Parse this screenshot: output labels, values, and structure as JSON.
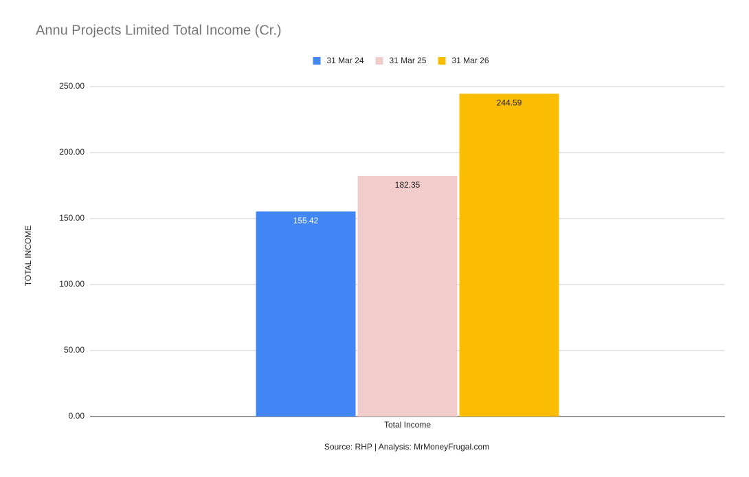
{
  "chart_data": {
    "type": "bar",
    "title": "Annu Projects Limited Total Income (Cr.)",
    "y_label": "TOTAL INCOME",
    "source": "Source: RHP | Analysis: MrMoneyFrugal.com",
    "categories": [
      "Total Income"
    ],
    "series": [
      {
        "name": "31 Mar 24",
        "color": "#4285f4",
        "values": [
          155.42
        ]
      },
      {
        "name": "31 Mar 25",
        "color": "#f2cbcb",
        "values": [
          182.35
        ]
      },
      {
        "name": "31 Mar 26",
        "color": "#fbbc04",
        "values": [
          244.59
        ]
      }
    ],
    "ylim": [
      0,
      250
    ],
    "yticks": [
      {
        "value": 0,
        "label": "0.00"
      },
      {
        "value": 50,
        "label": "50.00"
      },
      {
        "value": 100,
        "label": "100.00"
      },
      {
        "value": 150,
        "label": "150.00"
      },
      {
        "value": 200,
        "label": "200.00"
      },
      {
        "value": 250,
        "label": "250.00"
      }
    ],
    "grid": true,
    "legend": "top"
  }
}
